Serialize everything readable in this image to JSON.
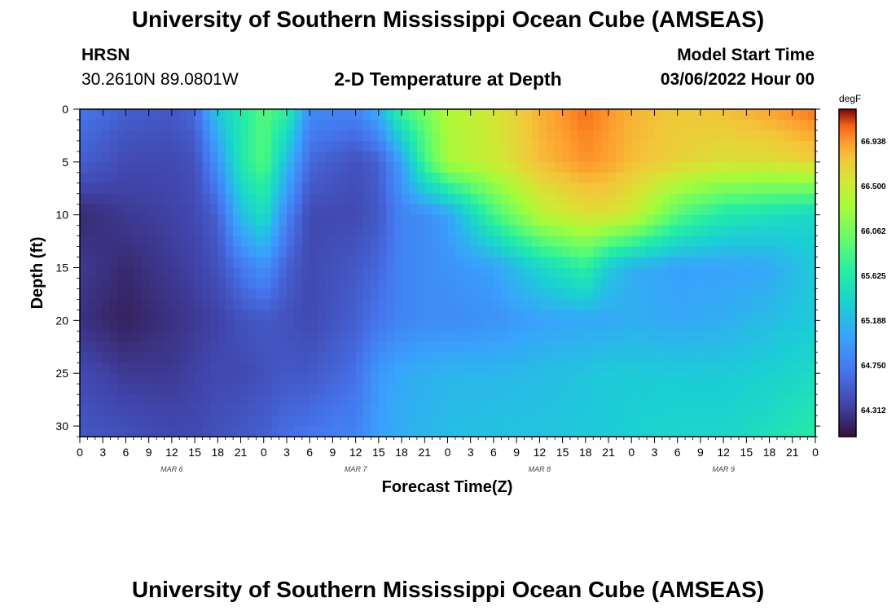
{
  "page": {
    "title": "University of Southern Mississippi Ocean Cube (AMSEAS)",
    "title_repeat": "University of Southern Mississippi Ocean Cube (AMSEAS)",
    "station": "HRSN",
    "coords": "30.2610N  89.0801W",
    "plot_title": "2-D Temperature at Depth",
    "model_start_label": "Model Start Time",
    "model_start_value": "03/06/2022 Hour 00"
  },
  "chart_data": {
    "type": "heatmap",
    "title": "2-D Temperature at Depth",
    "xlabel": "Forecast Time(Z)",
    "ylabel": "Depth (ft)",
    "x_range_hours": [
      0,
      96
    ],
    "ylim": [
      0,
      31
    ],
    "y_ticks": [
      0,
      5,
      10,
      15,
      20,
      25,
      30
    ],
    "x_tick_labels": [
      "0",
      "3",
      "6",
      "9",
      "12",
      "15",
      "18",
      "21",
      "0",
      "3",
      "6",
      "9",
      "12",
      "15",
      "18",
      "21",
      "0",
      "3",
      "6",
      "9",
      "12",
      "15",
      "18",
      "21",
      "0",
      "3",
      "6",
      "9",
      "12",
      "15",
      "18",
      "21",
      "0"
    ],
    "day_labels": [
      {
        "label": "MAR 6",
        "hour": 12
      },
      {
        "label": "MAR 7",
        "hour": 36
      },
      {
        "label": "MAR 8",
        "hour": 60
      },
      {
        "label": "MAR 9",
        "hour": 84
      }
    ],
    "colorbar": {
      "unit": "degF",
      "ticks": [
        "66.938",
        "66.500",
        "66.062",
        "65.625",
        "65.188",
        "64.750",
        "64.312"
      ],
      "min": 64.05,
      "max": 67.25
    },
    "depths_ft": [
      0,
      5,
      10,
      15,
      20,
      25,
      31
    ],
    "times_h": [
      0,
      6,
      12,
      15,
      18,
      21,
      24,
      27,
      30,
      36,
      39,
      42,
      45,
      48,
      54,
      60,
      66,
      69,
      72,
      78,
      84,
      90,
      96
    ],
    "temperature_degF": [
      [
        64.7,
        64.55,
        64.5,
        64.6,
        65.3,
        65.6,
        65.9,
        65.7,
        64.85,
        64.8,
        65.1,
        65.8,
        66.05,
        66.35,
        66.55,
        66.85,
        67.05,
        66.95,
        66.85,
        66.75,
        66.8,
        66.9,
        67.05
      ],
      [
        64.55,
        64.4,
        64.4,
        64.45,
        64.9,
        65.6,
        65.9,
        65.2,
        64.6,
        64.45,
        64.55,
        65.0,
        65.8,
        66.3,
        66.5,
        66.8,
        66.95,
        66.9,
        66.8,
        66.7,
        66.6,
        66.6,
        66.7
      ],
      [
        64.2,
        64.3,
        64.35,
        64.4,
        64.55,
        65.2,
        65.5,
        64.8,
        64.4,
        64.4,
        64.5,
        64.8,
        64.85,
        65.0,
        65.8,
        66.4,
        66.6,
        66.6,
        66.5,
        65.9,
        65.6,
        65.5,
        65.4
      ],
      [
        64.3,
        64.2,
        64.3,
        64.35,
        64.45,
        64.7,
        64.9,
        64.55,
        64.4,
        64.5,
        64.6,
        64.8,
        64.85,
        64.9,
        65.0,
        65.4,
        65.7,
        65.3,
        65.1,
        65.0,
        65.0,
        65.05,
        65.3
      ],
      [
        64.25,
        64.15,
        64.25,
        64.3,
        64.35,
        64.45,
        64.5,
        64.45,
        64.4,
        64.55,
        64.7,
        64.8,
        64.85,
        64.85,
        64.9,
        65.0,
        65.05,
        65.05,
        65.1,
        65.05,
        65.1,
        65.2,
        65.3
      ],
      [
        64.4,
        64.3,
        64.3,
        64.35,
        64.4,
        64.4,
        64.45,
        64.5,
        64.5,
        64.65,
        64.95,
        65.05,
        65.1,
        65.15,
        65.15,
        65.2,
        65.25,
        65.3,
        65.3,
        65.3,
        65.3,
        65.35,
        65.45
      ],
      [
        64.5,
        64.45,
        64.4,
        64.4,
        64.45,
        64.5,
        64.55,
        64.65,
        64.7,
        64.8,
        65.0,
        65.1,
        65.15,
        65.2,
        65.25,
        65.25,
        65.3,
        65.3,
        65.35,
        65.4,
        65.4,
        65.5,
        65.65
      ]
    ]
  }
}
